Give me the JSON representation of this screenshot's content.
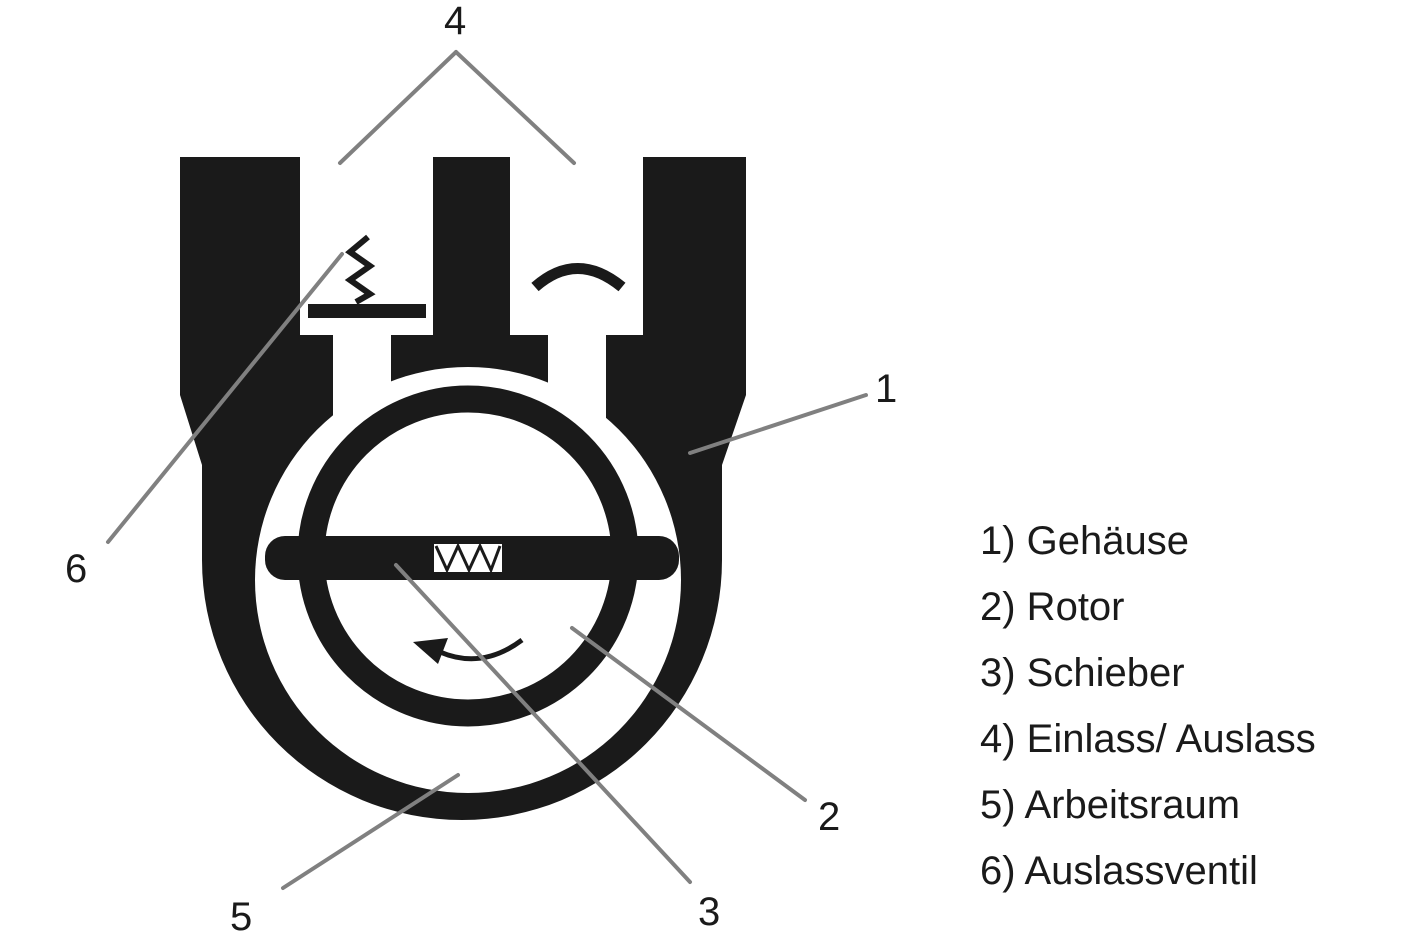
{
  "colors": {
    "housing": "#1a1a1a",
    "leader_line": "#808080",
    "background": "#ffffff"
  },
  "callouts": {
    "c1": "1",
    "c2": "2",
    "c3": "3",
    "c4": "4",
    "c5": "5",
    "c6": "6"
  },
  "legend": [
    "1) Gehäuse",
    "2) Rotor",
    "3) Schieber",
    "4) Einlass/ Auslass",
    "5) Arbeitsraum",
    "6) Auslassventil"
  ]
}
